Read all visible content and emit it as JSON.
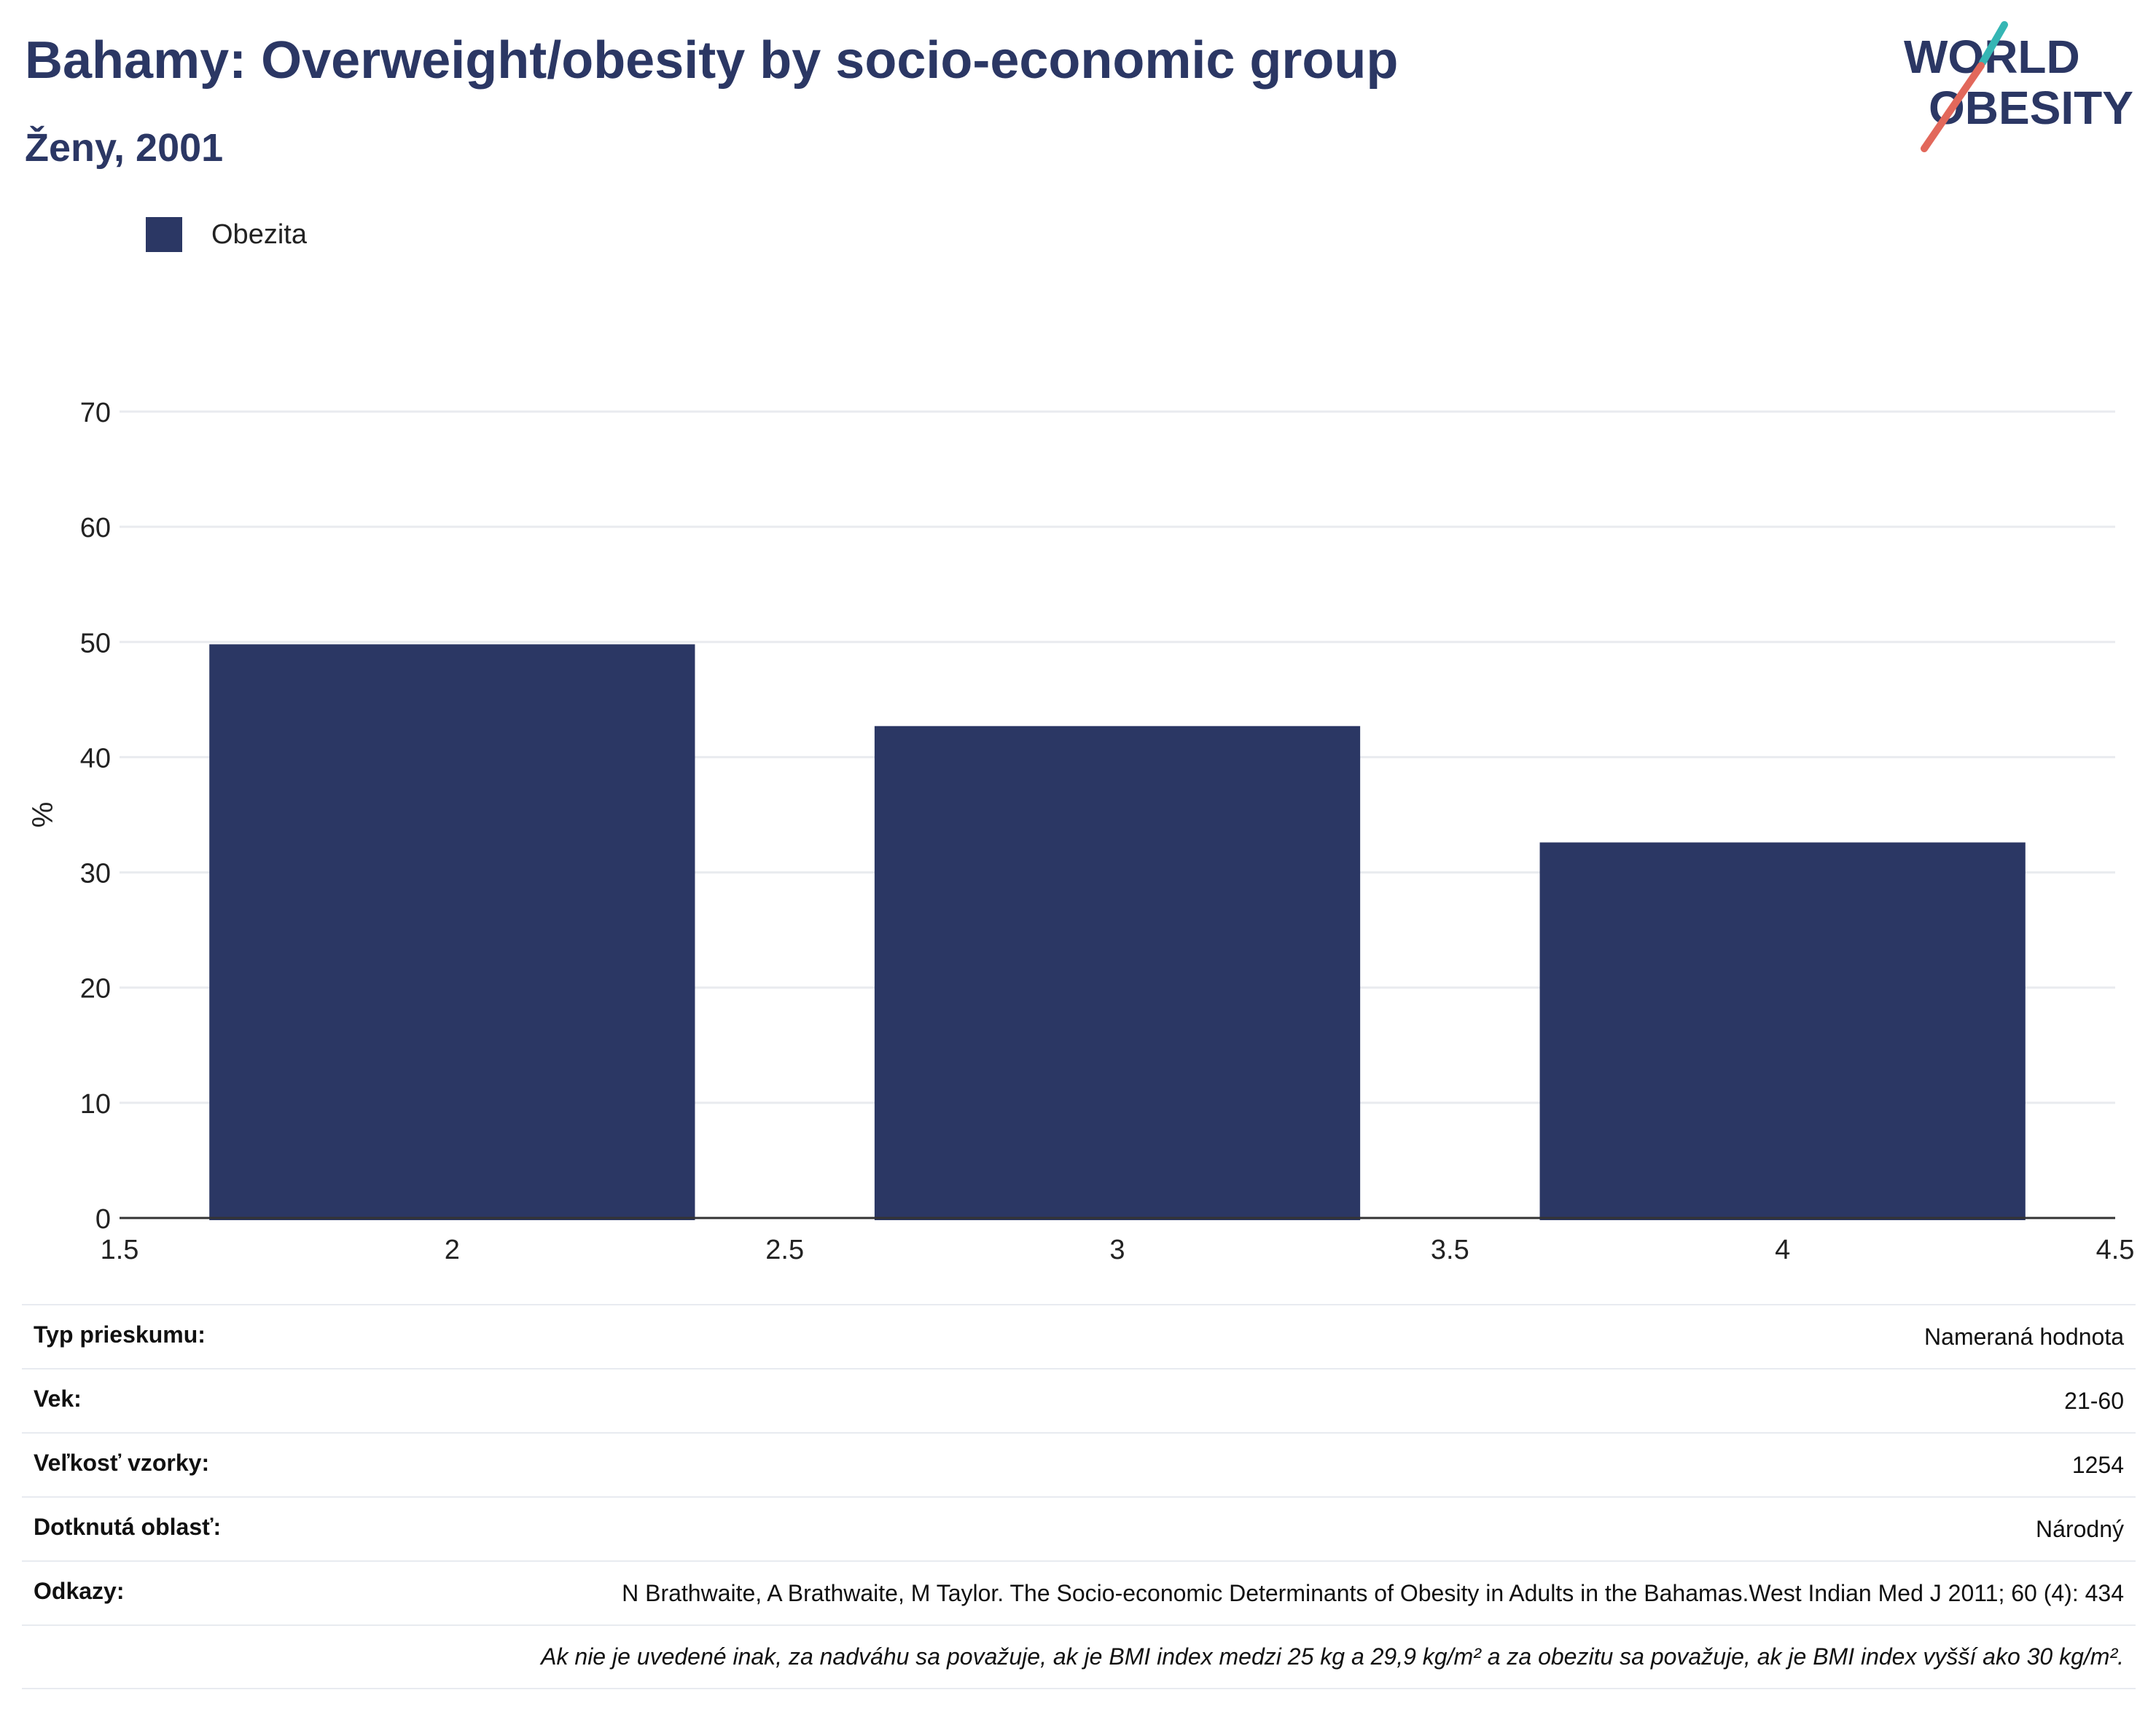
{
  "header": {
    "title": "Bahamy: Overweight/obesity by socio-economic group",
    "subtitle": "Ženy, 2001"
  },
  "logo": {
    "line1": "WORLD",
    "line2": "OBESITY"
  },
  "legend": {
    "label": "Obezita",
    "color": "#2b3764"
  },
  "chart_data": {
    "type": "bar",
    "x": [
      2,
      3,
      4
    ],
    "series": [
      {
        "name": "Obezita",
        "values": [
          49.8,
          42.7,
          32.6
        ],
        "color": "#2b3764"
      }
    ],
    "xlim": [
      1.5,
      4.5
    ],
    "ylim": [
      0,
      70
    ],
    "xticks": [
      1.5,
      2,
      2.5,
      3,
      3.5,
      4,
      4.5
    ],
    "xtick_labels": [
      "1.5",
      "2",
      "2.5",
      "3",
      "3.5",
      "4",
      "4.5"
    ],
    "yticks": [
      0,
      10,
      20,
      30,
      40,
      50,
      60,
      70
    ],
    "ylabel": "%",
    "xlabel": "",
    "grid": true,
    "legend_position": "top-left"
  },
  "meta": {
    "rows": [
      {
        "label": "Typ prieskumu:",
        "value": "Nameraná hodnota"
      },
      {
        "label": "Vek:",
        "value": "21-60"
      },
      {
        "label": "Veľkosť vzorky:",
        "value": "1254"
      },
      {
        "label": "Dotknutá oblasť:",
        "value": "Národný"
      },
      {
        "label": "Odkazy:",
        "value": "N Brathwaite, A Brathwaite, M Taylor. The Socio-economic Determinants of Obesity in Adults in the Bahamas.West Indian Med J 2011; 60 (4): 434"
      }
    ],
    "note": "Ak nie je uvedené inak, za nadváhu sa považuje, ak je BMI index medzi 25 kg a 29,9 kg/m² a za obezitu sa považuje, ak je BMI index vyšší ako 30 kg/m²."
  }
}
